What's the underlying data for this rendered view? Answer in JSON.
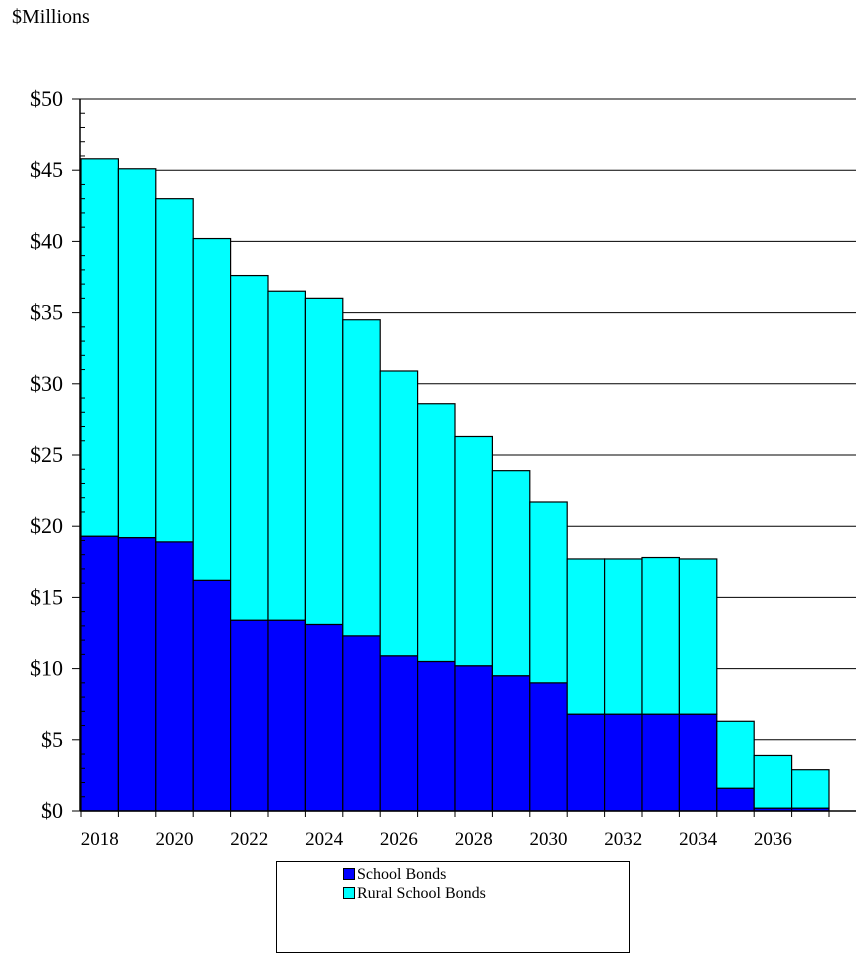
{
  "unit_label": "$Millions",
  "colors": {
    "school": "#0000ff",
    "rural": "#00ffff",
    "outline": "#000000"
  },
  "chart_data": {
    "type": "bar",
    "stacked": true,
    "x": [
      2018,
      2019,
      2020,
      2021,
      2022,
      2023,
      2024,
      2025,
      2026,
      2027,
      2028,
      2029,
      2030,
      2031,
      2032,
      2033,
      2034,
      2035,
      2036,
      2037
    ],
    "x_tick_labels": [
      "2018",
      "2020",
      "2022",
      "2024",
      "2026",
      "2028",
      "2030",
      "2032",
      "2034",
      "2036"
    ],
    "series": [
      {
        "name": "School Bonds",
        "values": [
          19.3,
          19.2,
          18.9,
          16.2,
          13.4,
          13.4,
          13.1,
          12.3,
          10.9,
          10.5,
          10.2,
          9.5,
          9.0,
          6.8,
          6.8,
          6.8,
          6.8,
          1.6,
          0.2,
          0.2
        ]
      },
      {
        "name": "Rural School Bonds",
        "values": [
          26.5,
          25.9,
          24.1,
          24.0,
          24.2,
          23.1,
          22.9,
          22.2,
          20.0,
          18.1,
          16.1,
          14.4,
          12.7,
          10.9,
          10.9,
          11.0,
          10.9,
          4.7,
          3.7,
          2.7
        ]
      }
    ],
    "y_tick_labels": [
      "$0",
      "$5",
      "$10",
      "$15",
      "$20",
      "$25",
      "$30",
      "$35",
      "$40",
      "$45",
      "$50"
    ],
    "ylim": [
      0,
      50
    ],
    "ylabel": "$Millions",
    "grid": true,
    "legend_position": "bottom"
  }
}
